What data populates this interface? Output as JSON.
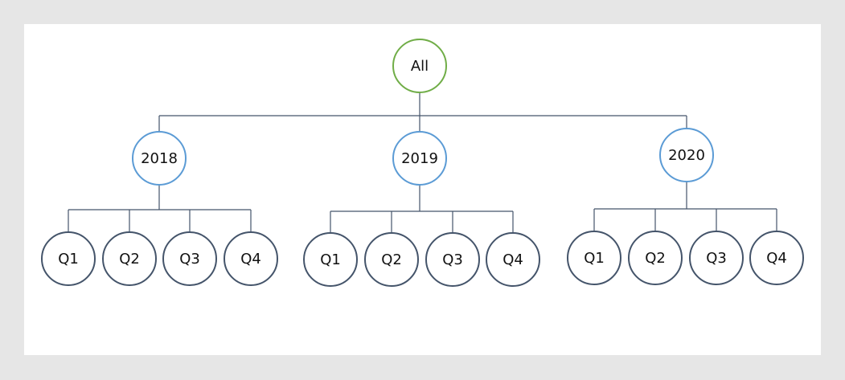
{
  "colors": {
    "root": "#70ad47",
    "year": "#5b9bd5",
    "quarter": "#44546a",
    "connector": "#44546a"
  },
  "tree": {
    "label": "All",
    "children": [
      {
        "label": "2018",
        "children": [
          {
            "label": "Q1"
          },
          {
            "label": "Q2"
          },
          {
            "label": "Q3"
          },
          {
            "label": "Q4"
          }
        ]
      },
      {
        "label": "2019",
        "children": [
          {
            "label": "Q1"
          },
          {
            "label": "Q2"
          },
          {
            "label": "Q3"
          },
          {
            "label": "Q4"
          }
        ]
      },
      {
        "label": "2020",
        "children": [
          {
            "label": "Q1"
          },
          {
            "label": "Q2"
          },
          {
            "label": "Q3"
          },
          {
            "label": "Q4"
          }
        ]
      }
    ]
  }
}
